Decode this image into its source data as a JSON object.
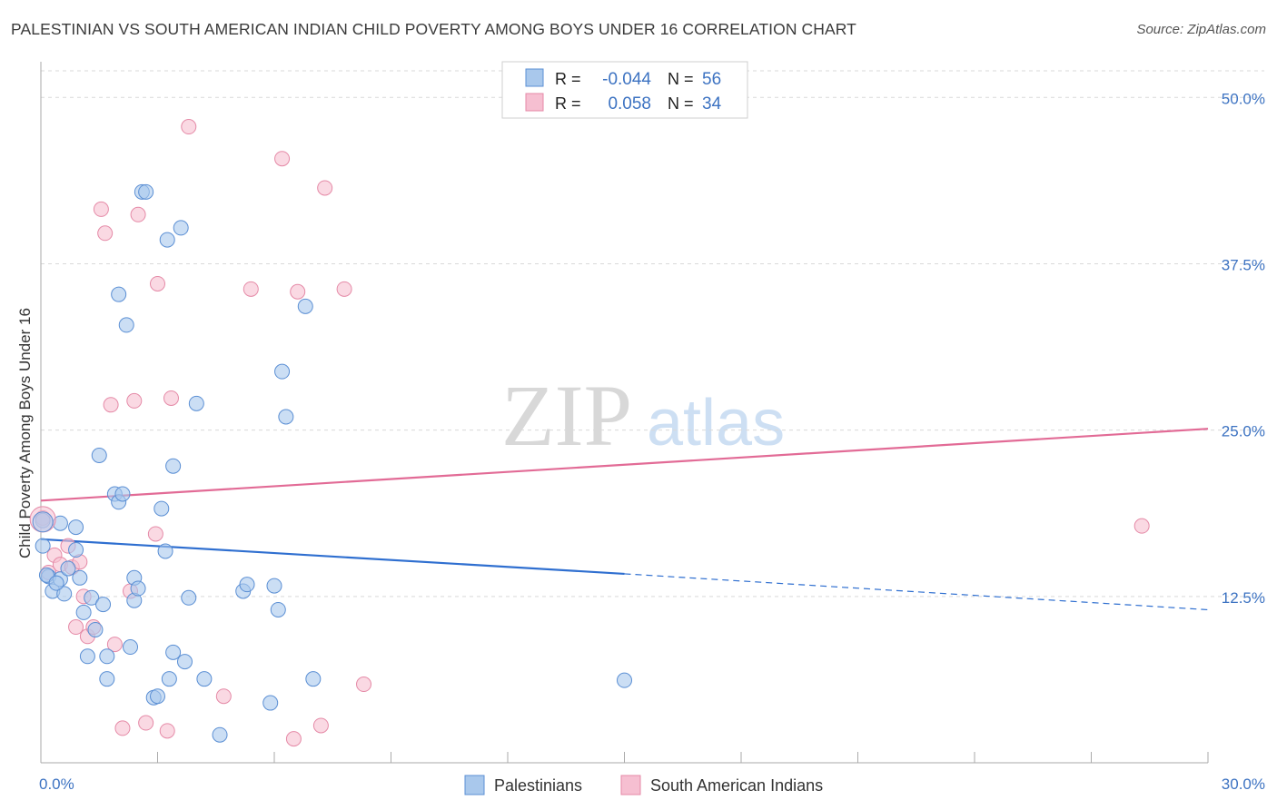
{
  "header": {
    "title": "PALESTINIAN VS SOUTH AMERICAN INDIAN CHILD POVERTY AMONG BOYS UNDER 16 CORRELATION CHART",
    "source": "Source: ZipAtlas.com"
  },
  "watermark": {
    "zip": "ZIP",
    "atlas": "atlas"
  },
  "legend_top": [
    {
      "r_label": "R =",
      "r_value": "-0.044",
      "n_label": "N =",
      "n_value": "56"
    },
    {
      "r_label": "R =",
      "r_value": "0.058",
      "n_label": "N =",
      "n_value": "34"
    }
  ],
  "colors": {
    "blue_fill": "#a9c8ec",
    "blue_stroke": "#5b8fd4",
    "blue_line": "#2f6fd0",
    "pink_fill": "#f6bfd1",
    "pink_stroke": "#e58aa7",
    "pink_line": "#e26b96",
    "tick_text": "#3d73c2",
    "grid": "#d9d9d9"
  },
  "chart_data": {
    "type": "scatter",
    "title": "PALESTINIAN VS SOUTH AMERICAN INDIAN CHILD POVERTY AMONG BOYS UNDER 16 CORRELATION CHART",
    "xlabel": "",
    "ylabel": "Child Poverty Among Boys Under 16",
    "xlim": [
      0,
      30
    ],
    "ylim": [
      0,
      52
    ],
    "x_tick_labels": [
      "0.0%",
      "30.0%"
    ],
    "y_ticks": [
      12.5,
      25.0,
      37.5,
      50.0
    ],
    "y_tick_labels": [
      "12.5%",
      "25.0%",
      "37.5%",
      "50.0%"
    ],
    "grid": true,
    "legend_position": "top-center",
    "series": [
      {
        "name": "Palestinians",
        "color": "#a9c8ec",
        "r": -0.044,
        "n": 56,
        "trend": {
          "x_start": 0,
          "y_start": 16.8,
          "x_end": 15,
          "y_end": 14.2,
          "dashed_to_x": 30,
          "dashed_to_y": 11.5
        },
        "points": [
          [
            0.05,
            18.2
          ],
          [
            0.05,
            16.3
          ],
          [
            0.2,
            14.0
          ],
          [
            0.3,
            12.9
          ],
          [
            0.5,
            13.8
          ],
          [
            0.6,
            12.7
          ],
          [
            0.7,
            14.6
          ],
          [
            0.5,
            18.0
          ],
          [
            0.9,
            17.7
          ],
          [
            1.0,
            13.9
          ],
          [
            1.1,
            11.3
          ],
          [
            1.4,
            10.0
          ],
          [
            1.3,
            12.4
          ],
          [
            1.6,
            11.9
          ],
          [
            0.9,
            16.0
          ],
          [
            1.2,
            8.0
          ],
          [
            1.7,
            8.0
          ],
          [
            1.7,
            6.3
          ],
          [
            1.5,
            23.1
          ],
          [
            1.9,
            20.2
          ],
          [
            2.0,
            19.6
          ],
          [
            2.1,
            20.2
          ],
          [
            2.0,
            35.2
          ],
          [
            2.2,
            32.9
          ],
          [
            2.3,
            8.7
          ],
          [
            2.4,
            12.2
          ],
          [
            2.4,
            13.9
          ],
          [
            2.5,
            13.1
          ],
          [
            2.6,
            42.9
          ],
          [
            2.7,
            42.9
          ],
          [
            2.9,
            4.9
          ],
          [
            3.0,
            5.0
          ],
          [
            3.1,
            19.1
          ],
          [
            3.2,
            15.9
          ],
          [
            3.3,
            6.3
          ],
          [
            3.25,
            39.3
          ],
          [
            3.4,
            22.3
          ],
          [
            3.6,
            40.2
          ],
          [
            3.4,
            8.3
          ],
          [
            3.7,
            7.6
          ],
          [
            3.8,
            12.4
          ],
          [
            4.0,
            27.0
          ],
          [
            4.2,
            6.3
          ],
          [
            4.6,
            2.1
          ],
          [
            5.2,
            12.9
          ],
          [
            5.3,
            13.4
          ],
          [
            5.9,
            4.5
          ],
          [
            6.0,
            13.3
          ],
          [
            6.1,
            11.5
          ],
          [
            6.2,
            29.4
          ],
          [
            6.3,
            26.0
          ],
          [
            6.8,
            34.3
          ],
          [
            7.0,
            6.3
          ],
          [
            15.0,
            6.2
          ],
          [
            0.15,
            14.1
          ],
          [
            0.4,
            13.5
          ]
        ]
      },
      {
        "name": "South American Indians",
        "color": "#f6bfd1",
        "r": 0.058,
        "n": 34,
        "trend": {
          "x_start": 0,
          "y_start": 19.7,
          "x_end": 30,
          "y_end": 25.1
        },
        "points": [
          [
            0.05,
            18.4
          ],
          [
            0.2,
            14.3
          ],
          [
            0.35,
            15.6
          ],
          [
            0.5,
            14.9
          ],
          [
            0.7,
            16.3
          ],
          [
            0.8,
            14.7
          ],
          [
            0.9,
            10.2
          ],
          [
            1.0,
            15.1
          ],
          [
            1.1,
            12.5
          ],
          [
            1.2,
            9.5
          ],
          [
            1.35,
            10.2
          ],
          [
            1.55,
            41.6
          ],
          [
            1.65,
            39.8
          ],
          [
            1.8,
            26.9
          ],
          [
            1.9,
            8.9
          ],
          [
            2.1,
            2.6
          ],
          [
            2.3,
            12.9
          ],
          [
            2.4,
            27.2
          ],
          [
            2.5,
            41.2
          ],
          [
            2.7,
            3.0
          ],
          [
            2.95,
            17.2
          ],
          [
            3.0,
            36.0
          ],
          [
            3.25,
            2.4
          ],
          [
            3.35,
            27.4
          ],
          [
            3.8,
            47.8
          ],
          [
            4.7,
            5.0
          ],
          [
            5.4,
            35.6
          ],
          [
            6.2,
            45.4
          ],
          [
            6.5,
            1.8
          ],
          [
            6.6,
            35.4
          ],
          [
            7.3,
            43.2
          ],
          [
            7.2,
            2.8
          ],
          [
            7.8,
            35.6
          ],
          [
            8.3,
            5.9
          ]
        ]
      }
    ],
    "outlier_note": "",
    "extra_pink": [
      [
        28.3,
        17.8
      ]
    ]
  },
  "bottom_legend": [
    {
      "label": "Palestinians"
    },
    {
      "label": "South American Indians"
    }
  ]
}
